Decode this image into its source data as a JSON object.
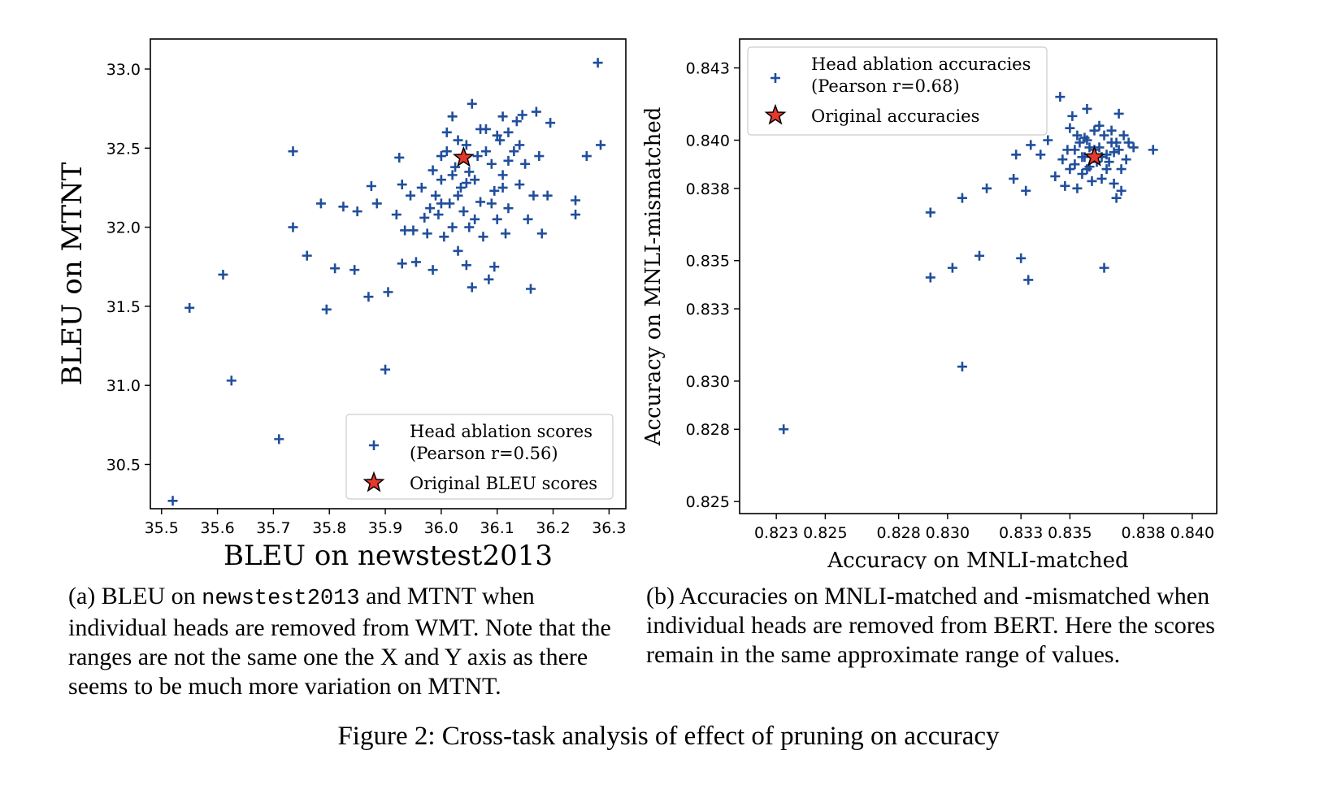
{
  "chart_data": [
    {
      "type": "scatter",
      "xlabel": "BLEU on newstest2013",
      "ylabel": "BLEU on MTNT",
      "xlim": [
        35.48,
        36.33
      ],
      "ylim": [
        30.22,
        33.19
      ],
      "xticks": [
        "35.5",
        "35.6",
        "35.7",
        "35.8",
        "35.9",
        "36.0",
        "36.1",
        "36.2",
        "36.3"
      ],
      "yticks": [
        "30.5",
        "31.0",
        "31.5",
        "32.0",
        "32.5",
        "33.0"
      ],
      "legend_position": "lower right",
      "series": [
        {
          "name": "Head ablation scores (Pearson r=0.56)",
          "marker": "plus",
          "color": "#1f4e9c",
          "points": [
            [
              35.52,
              30.27
            ],
            [
              35.55,
              31.49
            ],
            [
              35.61,
              31.7
            ],
            [
              35.625,
              31.03
            ],
            [
              35.71,
              30.66
            ],
            [
              35.735,
              32.48
            ],
            [
              35.735,
              32.0
            ],
            [
              35.76,
              31.82
            ],
            [
              35.785,
              32.15
            ],
            [
              35.795,
              31.48
            ],
            [
              35.81,
              31.74
            ],
            [
              35.825,
              32.13
            ],
            [
              35.845,
              31.73
            ],
            [
              35.85,
              32.1
            ],
            [
              35.87,
              31.56
            ],
            [
              35.875,
              32.26
            ],
            [
              35.885,
              32.15
            ],
            [
              35.9,
              31.1
            ],
            [
              35.905,
              31.59
            ],
            [
              35.92,
              32.08
            ],
            [
              35.925,
              32.44
            ],
            [
              35.93,
              32.27
            ],
            [
              35.93,
              31.77
            ],
            [
              35.935,
              31.98
            ],
            [
              35.945,
              32.2
            ],
            [
              35.95,
              31.98
            ],
            [
              35.955,
              31.78
            ],
            [
              35.965,
              32.25
            ],
            [
              35.97,
              32.06
            ],
            [
              35.975,
              31.96
            ],
            [
              35.985,
              32.36
            ],
            [
              35.985,
              31.73
            ],
            [
              35.99,
              32.2
            ],
            [
              35.995,
              32.08
            ],
            [
              36.0,
              32.45
            ],
            [
              36.0,
              32.3
            ],
            [
              36.005,
              31.94
            ],
            [
              36.01,
              32.6
            ],
            [
              36.015,
              32.15
            ],
            [
              36.02,
              32.0
            ],
            [
              36.02,
              32.7
            ],
            [
              36.025,
              32.38
            ],
            [
              36.03,
              31.85
            ],
            [
              36.035,
              32.25
            ],
            [
              36.04,
              32.1
            ],
            [
              36.045,
              32.52
            ],
            [
              36.045,
              31.76
            ],
            [
              36.05,
              32.0
            ],
            [
              36.055,
              32.78
            ],
            [
              36.055,
              31.62
            ],
            [
              36.06,
              32.3
            ],
            [
              36.065,
              32.45
            ],
            [
              36.07,
              32.16
            ],
            [
              36.075,
              31.94
            ],
            [
              36.08,
              32.62
            ],
            [
              36.085,
              31.67
            ],
            [
              36.09,
              32.4
            ],
            [
              36.095,
              32.23
            ],
            [
              36.095,
              31.75
            ],
            [
              36.1,
              32.05
            ],
            [
              36.105,
              32.55
            ],
            [
              36.11,
              32.7
            ],
            [
              36.11,
              32.33
            ],
            [
              36.115,
              31.96
            ],
            [
              36.12,
              32.12
            ],
            [
              36.13,
              32.48
            ],
            [
              36.135,
              32.67
            ],
            [
              36.14,
              32.27
            ],
            [
              36.145,
              32.71
            ],
            [
              36.15,
              32.4
            ],
            [
              36.155,
              32.05
            ],
            [
              36.16,
              31.61
            ],
            [
              36.165,
              32.2
            ],
            [
              36.17,
              32.73
            ],
            [
              36.175,
              32.45
            ],
            [
              36.18,
              31.96
            ],
            [
              36.19,
              32.2
            ],
            [
              36.195,
              32.66
            ],
            [
              36.24,
              32.17
            ],
            [
              36.24,
              32.08
            ],
            [
              36.26,
              32.45
            ],
            [
              36.28,
              33.04
            ],
            [
              36.285,
              32.52
            ],
            [
              36.03,
              32.55
            ],
            [
              36.07,
              32.62
            ],
            [
              36.12,
              32.6
            ],
            [
              36.0,
              32.15
            ],
            [
              36.06,
              32.05
            ],
            [
              36.02,
              32.33
            ],
            [
              36.09,
              32.15
            ],
            [
              36.05,
              32.35
            ],
            [
              36.11,
              32.25
            ],
            [
              36.01,
              32.48
            ],
            [
              36.14,
              32.52
            ],
            [
              35.98,
              32.12
            ],
            [
              36.08,
              32.48
            ],
            [
              36.12,
              32.42
            ],
            [
              36.03,
              32.2
            ],
            [
              36.1,
              32.58
            ],
            [
              36.045,
              32.28
            ]
          ]
        },
        {
          "name": "Original BLEU scores",
          "marker": "star",
          "color": "#e8382c",
          "points": [
            [
              36.04,
              32.44
            ]
          ]
        }
      ]
    },
    {
      "type": "scatter",
      "xlabel": "Accuracy on MNLI-matched",
      "ylabel": "Accuracy on MNLI-mismatched",
      "xlim": [
        0.8215,
        0.841
      ],
      "ylim": [
        0.8245,
        0.8442
      ],
      "xticks": [
        "0.823",
        "0.825",
        "0.828",
        "0.830",
        "0.833",
        "0.835",
        "0.838",
        "0.840"
      ],
      "yticks": [
        "0.825",
        "0.828",
        "0.830",
        "0.833",
        "0.835",
        "0.838",
        "0.840",
        "0.843"
      ],
      "legend_position": "upper left",
      "series": [
        {
          "name": "Head ablation accuracies (Pearson r=0.68)",
          "marker": "plus",
          "color": "#1f4e9c",
          "points": [
            [
              0.8233,
              0.828
            ],
            [
              0.8293,
              0.837
            ],
            [
              0.8293,
              0.8343
            ],
            [
              0.8302,
              0.8347
            ],
            [
              0.8306,
              0.8306
            ],
            [
              0.8306,
              0.8376
            ],
            [
              0.8313,
              0.8352
            ],
            [
              0.8316,
              0.838
            ],
            [
              0.8327,
              0.8384
            ],
            [
              0.8328,
              0.8394
            ],
            [
              0.833,
              0.8351
            ],
            [
              0.8332,
              0.8379
            ],
            [
              0.8333,
              0.8342
            ],
            [
              0.8334,
              0.8398
            ],
            [
              0.8338,
              0.8394
            ],
            [
              0.8341,
              0.84
            ],
            [
              0.8344,
              0.8385
            ],
            [
              0.8346,
              0.8418
            ],
            [
              0.8347,
              0.8392
            ],
            [
              0.8348,
              0.8381
            ],
            [
              0.835,
              0.8405
            ],
            [
              0.835,
              0.8388
            ],
            [
              0.8351,
              0.841
            ],
            [
              0.8352,
              0.8396
            ],
            [
              0.8353,
              0.838
            ],
            [
              0.8354,
              0.8399
            ],
            [
              0.8355,
              0.8386
            ],
            [
              0.8356,
              0.8401
            ],
            [
              0.8356,
              0.8393
            ],
            [
              0.8357,
              0.8413
            ],
            [
              0.8357,
              0.8388
            ],
            [
              0.8358,
              0.8397
            ],
            [
              0.8359,
              0.8383
            ],
            [
              0.836,
              0.8404
            ],
            [
              0.8361,
              0.8391
            ],
            [
              0.8362,
              0.8397
            ],
            [
              0.8363,
              0.8384
            ],
            [
              0.8364,
              0.8347
            ],
            [
              0.8364,
              0.8402
            ],
            [
              0.8365,
              0.8394
            ],
            [
              0.8366,
              0.8391
            ],
            [
              0.8367,
              0.8399
            ],
            [
              0.8367,
              0.8404
            ],
            [
              0.8368,
              0.8382
            ],
            [
              0.8369,
              0.8376
            ],
            [
              0.837,
              0.8411
            ],
            [
              0.837,
              0.8396
            ],
            [
              0.8371,
              0.8388
            ],
            [
              0.8371,
              0.8379
            ],
            [
              0.8372,
              0.8402
            ],
            [
              0.8373,
              0.8392
            ],
            [
              0.8374,
              0.8399
            ],
            [
              0.8376,
              0.8397
            ],
            [
              0.8384,
              0.8396
            ],
            [
              0.8353,
              0.8402
            ],
            [
              0.8358,
              0.8389
            ],
            [
              0.8362,
              0.8406
            ],
            [
              0.8368,
              0.8395
            ],
            [
              0.8355,
              0.8393
            ],
            [
              0.8349,
              0.8396
            ],
            [
              0.8365,
              0.8388
            ],
            [
              0.836,
              0.8396
            ],
            [
              0.8357,
              0.84
            ],
            [
              0.8352,
              0.839
            ],
            [
              0.8369,
              0.8399
            ],
            [
              0.8363,
              0.8393
            ]
          ]
        },
        {
          "name": "Original accuracies",
          "marker": "star",
          "color": "#e8382c",
          "points": [
            [
              0.836,
              0.8393
            ]
          ]
        }
      ]
    }
  ],
  "captions": {
    "a_label": "(a)",
    "a_before": "BLEU on ",
    "a_mono": "newstest2013",
    "a_after": " and MTNT when individual heads are removed from WMT. Note that the ranges are not the same one the X and Y axis as there seems to be much more variation on MTNT.",
    "b_label": "(b)",
    "b_text": "Accuracies on MNLI-matched and -mismatched when individual heads are removed from BERT. Here the scores remain in the same approximate range of values.",
    "figure": "Figure 2: Cross-task analysis of effect of pruning on accuracy"
  }
}
